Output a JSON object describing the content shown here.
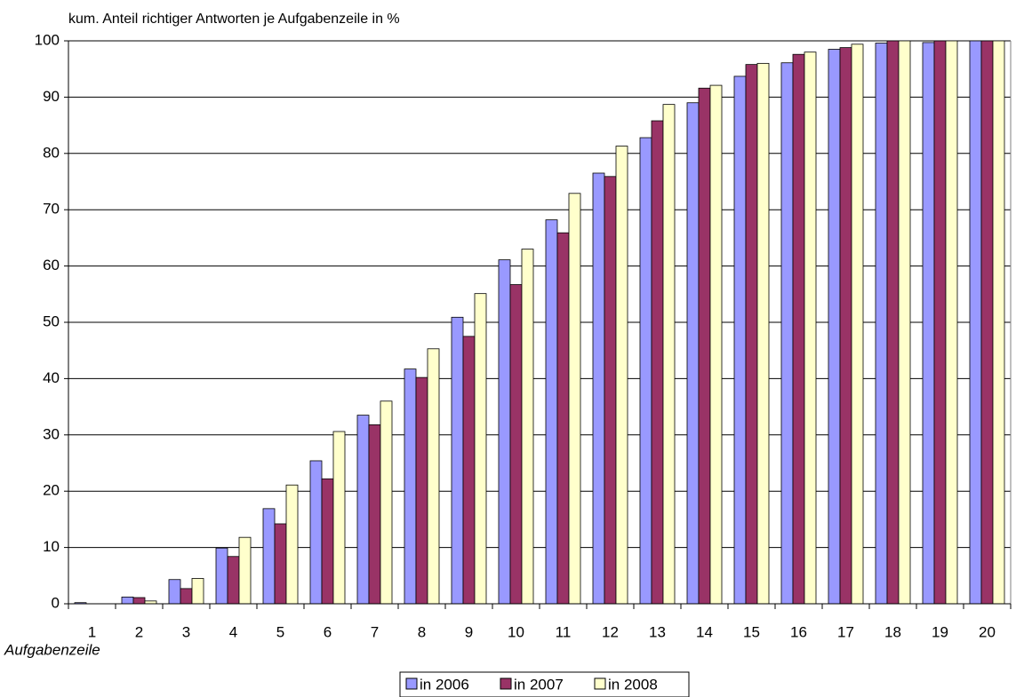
{
  "chart_data": {
    "type": "bar",
    "title": "kum. Anteil richtiger Antworten je Aufgabenzeile in %",
    "x_label": "Aufgabenzeile",
    "categories": [
      "1",
      "2",
      "3",
      "4",
      "5",
      "6",
      "7",
      "8",
      "9",
      "10",
      "11",
      "12",
      "13",
      "14",
      "15",
      "16",
      "17",
      "18",
      "19",
      "20"
    ],
    "series": [
      {
        "name": "in 2006",
        "color": "#9999ff",
        "values": [
          0.2,
          1.2,
          4.3,
          9.9,
          16.9,
          25.4,
          33.5,
          41.7,
          50.9,
          61.1,
          68.2,
          76.5,
          82.8,
          89.0,
          93.7,
          96.1,
          98.5,
          99.6,
          99.7,
          100
        ]
      },
      {
        "name": "in 2007",
        "color": "#993366",
        "values": [
          0,
          1.1,
          2.7,
          8.4,
          14.2,
          22.2,
          31.8,
          40.2,
          47.5,
          56.7,
          65.9,
          75.9,
          85.8,
          91.6,
          95.8,
          97.6,
          98.8,
          100,
          100,
          100
        ]
      },
      {
        "name": "in 2008",
        "color": "#ffffcc",
        "values": [
          0,
          0.5,
          4.5,
          11.8,
          21.1,
          30.6,
          36.0,
          45.3,
          55.1,
          63.0,
          72.9,
          81.3,
          88.7,
          92.1,
          96.0,
          98.0,
          99.4,
          100,
          100,
          100
        ]
      }
    ],
    "ylim": [
      0,
      100
    ],
    "yticks": [
      0,
      10,
      20,
      30,
      40,
      50,
      60,
      70,
      80,
      90,
      100
    ],
    "grid": true,
    "legend": "bottom"
  }
}
